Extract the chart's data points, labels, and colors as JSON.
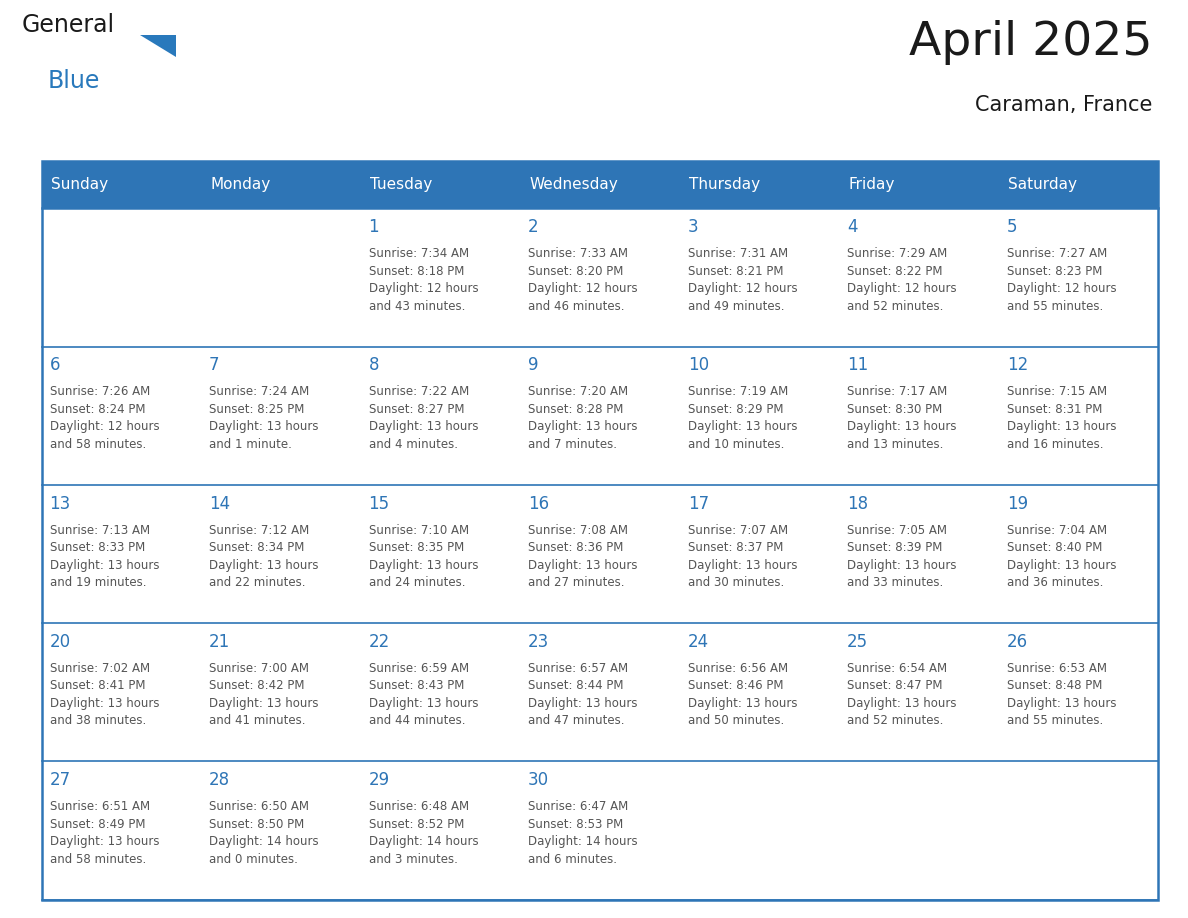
{
  "title": "April 2025",
  "subtitle": "Caraman, France",
  "header_color": "#2E75B6",
  "header_text_color": "#FFFFFF",
  "cell_bg_color": "#FFFFFF",
  "cell_border_color": "#2E75B6",
  "day_number_color": "#2E75B6",
  "cell_text_color": "#555555",
  "days_of_week": [
    "Sunday",
    "Monday",
    "Tuesday",
    "Wednesday",
    "Thursday",
    "Friday",
    "Saturday"
  ],
  "calendar_data": [
    [
      {
        "day": "",
        "content": ""
      },
      {
        "day": "",
        "content": ""
      },
      {
        "day": "1",
        "content": "Sunrise: 7:34 AM\nSunset: 8:18 PM\nDaylight: 12 hours\nand 43 minutes."
      },
      {
        "day": "2",
        "content": "Sunrise: 7:33 AM\nSunset: 8:20 PM\nDaylight: 12 hours\nand 46 minutes."
      },
      {
        "day": "3",
        "content": "Sunrise: 7:31 AM\nSunset: 8:21 PM\nDaylight: 12 hours\nand 49 minutes."
      },
      {
        "day": "4",
        "content": "Sunrise: 7:29 AM\nSunset: 8:22 PM\nDaylight: 12 hours\nand 52 minutes."
      },
      {
        "day": "5",
        "content": "Sunrise: 7:27 AM\nSunset: 8:23 PM\nDaylight: 12 hours\nand 55 minutes."
      }
    ],
    [
      {
        "day": "6",
        "content": "Sunrise: 7:26 AM\nSunset: 8:24 PM\nDaylight: 12 hours\nand 58 minutes."
      },
      {
        "day": "7",
        "content": "Sunrise: 7:24 AM\nSunset: 8:25 PM\nDaylight: 13 hours\nand 1 minute."
      },
      {
        "day": "8",
        "content": "Sunrise: 7:22 AM\nSunset: 8:27 PM\nDaylight: 13 hours\nand 4 minutes."
      },
      {
        "day": "9",
        "content": "Sunrise: 7:20 AM\nSunset: 8:28 PM\nDaylight: 13 hours\nand 7 minutes."
      },
      {
        "day": "10",
        "content": "Sunrise: 7:19 AM\nSunset: 8:29 PM\nDaylight: 13 hours\nand 10 minutes."
      },
      {
        "day": "11",
        "content": "Sunrise: 7:17 AM\nSunset: 8:30 PM\nDaylight: 13 hours\nand 13 minutes."
      },
      {
        "day": "12",
        "content": "Sunrise: 7:15 AM\nSunset: 8:31 PM\nDaylight: 13 hours\nand 16 minutes."
      }
    ],
    [
      {
        "day": "13",
        "content": "Sunrise: 7:13 AM\nSunset: 8:33 PM\nDaylight: 13 hours\nand 19 minutes."
      },
      {
        "day": "14",
        "content": "Sunrise: 7:12 AM\nSunset: 8:34 PM\nDaylight: 13 hours\nand 22 minutes."
      },
      {
        "day": "15",
        "content": "Sunrise: 7:10 AM\nSunset: 8:35 PM\nDaylight: 13 hours\nand 24 minutes."
      },
      {
        "day": "16",
        "content": "Sunrise: 7:08 AM\nSunset: 8:36 PM\nDaylight: 13 hours\nand 27 minutes."
      },
      {
        "day": "17",
        "content": "Sunrise: 7:07 AM\nSunset: 8:37 PM\nDaylight: 13 hours\nand 30 minutes."
      },
      {
        "day": "18",
        "content": "Sunrise: 7:05 AM\nSunset: 8:39 PM\nDaylight: 13 hours\nand 33 minutes."
      },
      {
        "day": "19",
        "content": "Sunrise: 7:04 AM\nSunset: 8:40 PM\nDaylight: 13 hours\nand 36 minutes."
      }
    ],
    [
      {
        "day": "20",
        "content": "Sunrise: 7:02 AM\nSunset: 8:41 PM\nDaylight: 13 hours\nand 38 minutes."
      },
      {
        "day": "21",
        "content": "Sunrise: 7:00 AM\nSunset: 8:42 PM\nDaylight: 13 hours\nand 41 minutes."
      },
      {
        "day": "22",
        "content": "Sunrise: 6:59 AM\nSunset: 8:43 PM\nDaylight: 13 hours\nand 44 minutes."
      },
      {
        "day": "23",
        "content": "Sunrise: 6:57 AM\nSunset: 8:44 PM\nDaylight: 13 hours\nand 47 minutes."
      },
      {
        "day": "24",
        "content": "Sunrise: 6:56 AM\nSunset: 8:46 PM\nDaylight: 13 hours\nand 50 minutes."
      },
      {
        "day": "25",
        "content": "Sunrise: 6:54 AM\nSunset: 8:47 PM\nDaylight: 13 hours\nand 52 minutes."
      },
      {
        "day": "26",
        "content": "Sunrise: 6:53 AM\nSunset: 8:48 PM\nDaylight: 13 hours\nand 55 minutes."
      }
    ],
    [
      {
        "day": "27",
        "content": "Sunrise: 6:51 AM\nSunset: 8:49 PM\nDaylight: 13 hours\nand 58 minutes."
      },
      {
        "day": "28",
        "content": "Sunrise: 6:50 AM\nSunset: 8:50 PM\nDaylight: 14 hours\nand 0 minutes."
      },
      {
        "day": "29",
        "content": "Sunrise: 6:48 AM\nSunset: 8:52 PM\nDaylight: 14 hours\nand 3 minutes."
      },
      {
        "day": "30",
        "content": "Sunrise: 6:47 AM\nSunset: 8:53 PM\nDaylight: 14 hours\nand 6 minutes."
      },
      {
        "day": "",
        "content": ""
      },
      {
        "day": "",
        "content": ""
      },
      {
        "day": "",
        "content": ""
      }
    ]
  ],
  "logo_color_general": "#1a1a1a",
  "logo_color_blue": "#2979BC",
  "logo_triangle_color": "#2979BC",
  "fig_width": 11.88,
  "fig_height": 9.18,
  "dpi": 100
}
